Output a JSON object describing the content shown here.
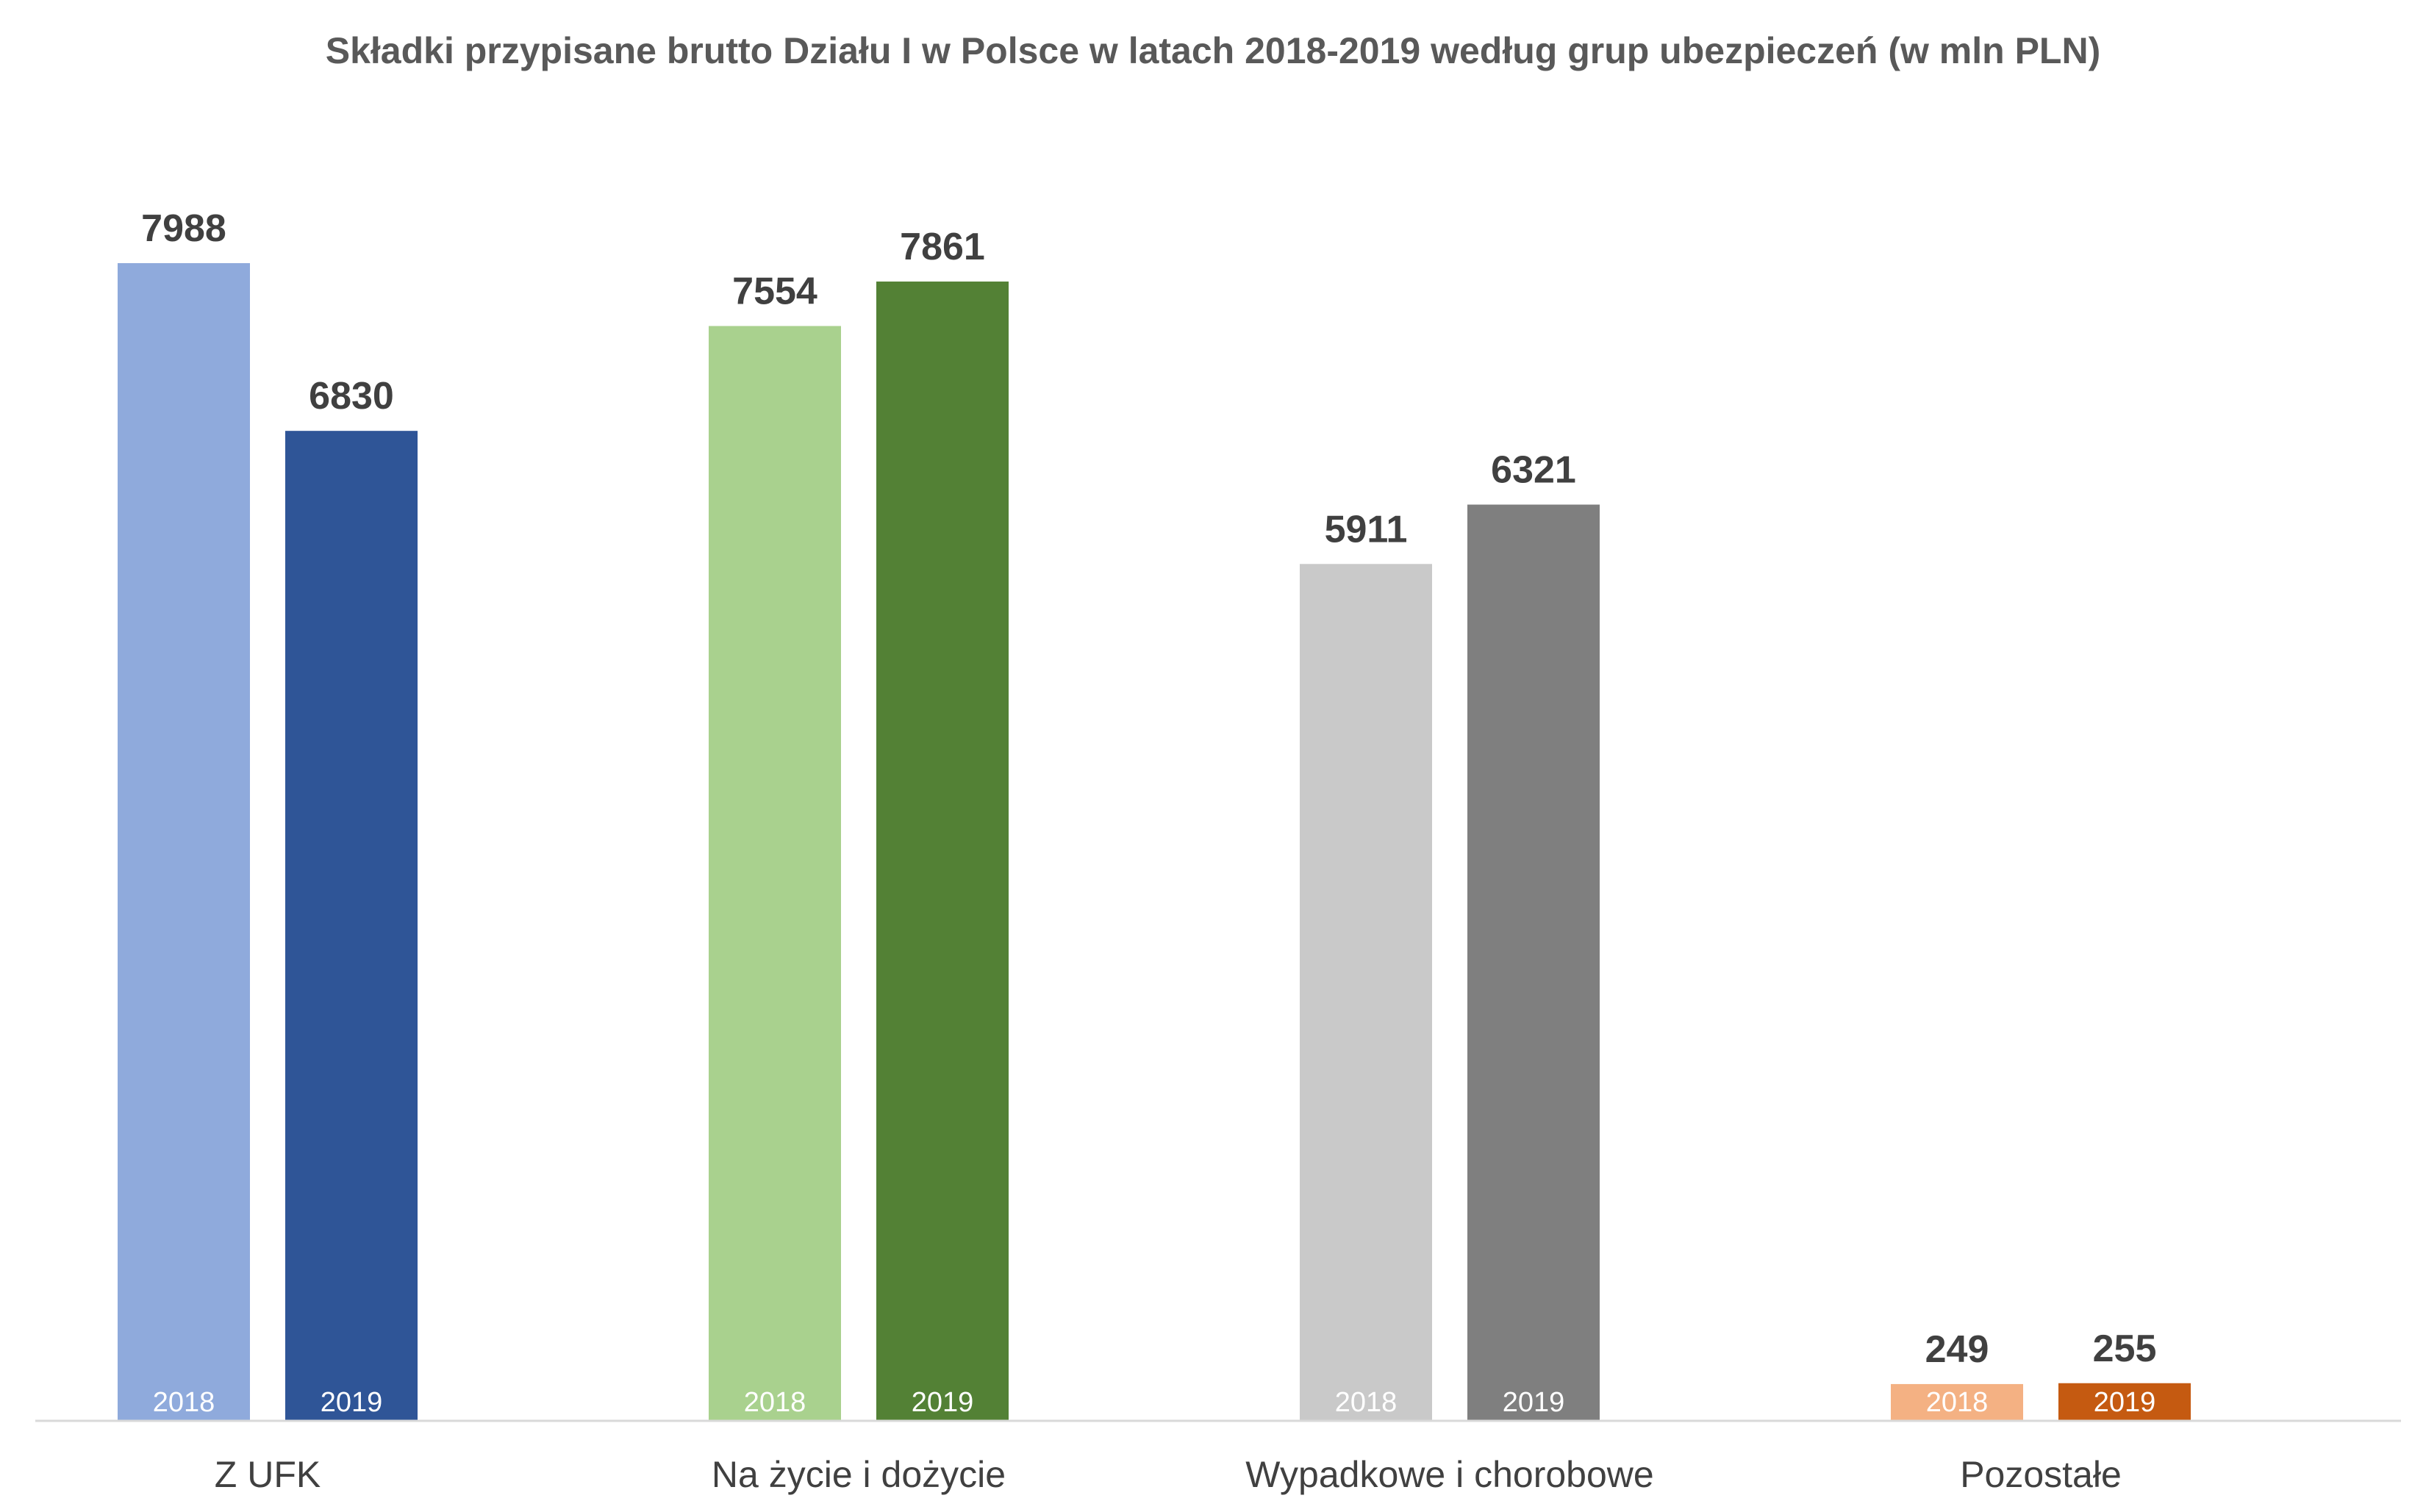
{
  "chart_data": {
    "type": "bar",
    "title": "Składki przypisane brutto Działu I w Polsce w latach 2018-2019 według grup ubezpieczeń (w mln PLN)",
    "categories": [
      "Z UFK",
      "Na życie i dożycie",
      "Wypadkowe i chorobowe",
      "Pozostałe"
    ],
    "series": [
      {
        "name": "2018",
        "values": [
          7988,
          7554,
          5911,
          249
        ]
      },
      {
        "name": "2019",
        "values": [
          6830,
          7861,
          6321,
          255
        ]
      }
    ],
    "colors": [
      [
        "#8FAADC",
        "#2F5597"
      ],
      [
        "#A9D18E",
        "#538135"
      ],
      [
        "#C9C9C9",
        "#7F7F7F"
      ],
      [
        "#F4B183",
        "#C55A11"
      ]
    ],
    "axis_color": "#D9D9D9",
    "ylim": [
      0,
      8000
    ],
    "grid": false,
    "legend": "none"
  }
}
